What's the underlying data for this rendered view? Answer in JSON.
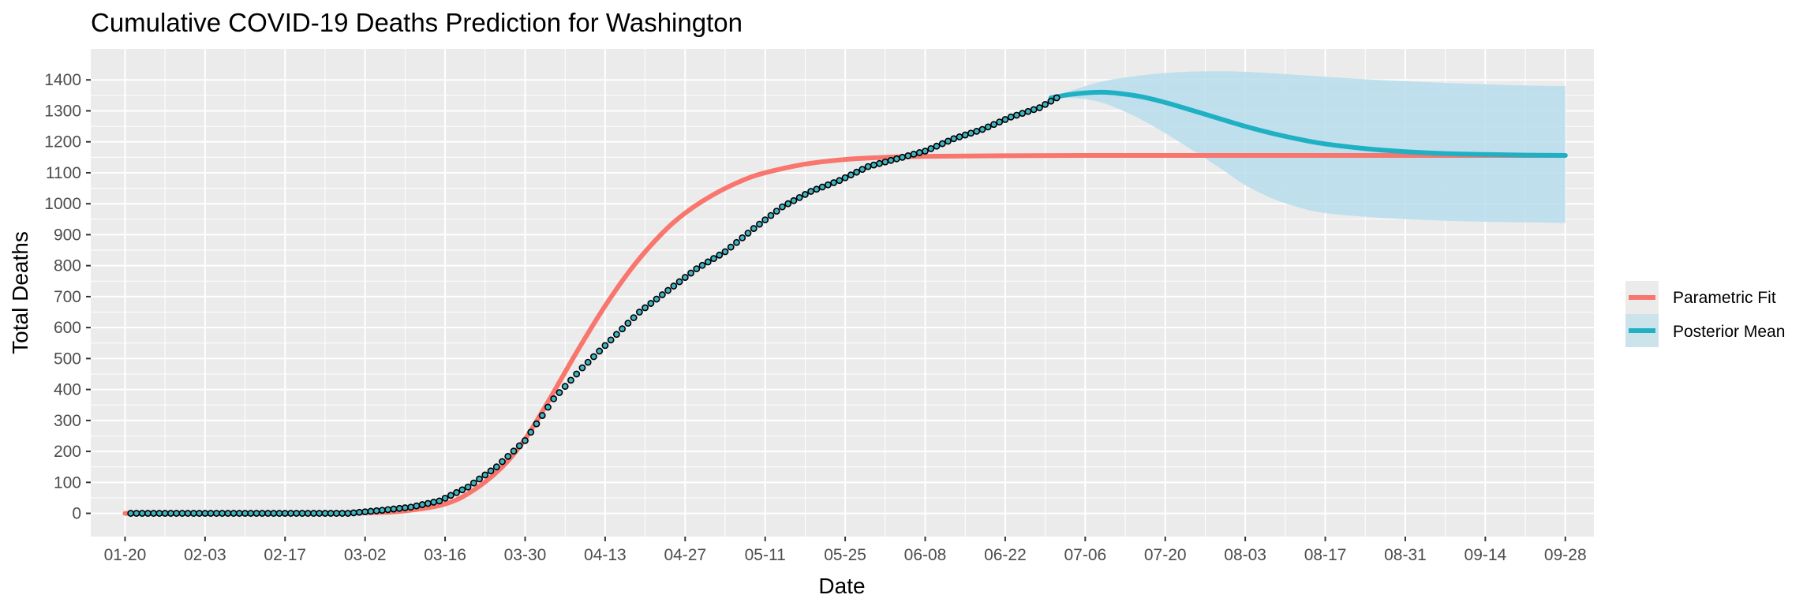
{
  "chart_data": {
    "type": "line",
    "title": "Cumulative COVID-19 Deaths Prediction for Washington",
    "xlabel": "Date",
    "ylabel": "Total Deaths",
    "x_axis": {
      "type": "date",
      "range": [
        "2020-01-14",
        "2020-10-03"
      ],
      "ticks": [
        {
          "date": "2020-01-20",
          "label": "01-20"
        },
        {
          "date": "2020-02-03",
          "label": "02-03"
        },
        {
          "date": "2020-02-17",
          "label": "02-17"
        },
        {
          "date": "2020-03-02",
          "label": "03-02"
        },
        {
          "date": "2020-03-16",
          "label": "03-16"
        },
        {
          "date": "2020-03-30",
          "label": "03-30"
        },
        {
          "date": "2020-04-13",
          "label": "04-13"
        },
        {
          "date": "2020-04-27",
          "label": "04-27"
        },
        {
          "date": "2020-05-11",
          "label": "05-11"
        },
        {
          "date": "2020-05-25",
          "label": "05-25"
        },
        {
          "date": "2020-06-08",
          "label": "06-08"
        },
        {
          "date": "2020-06-22",
          "label": "06-22"
        },
        {
          "date": "2020-07-06",
          "label": "07-06"
        },
        {
          "date": "2020-07-20",
          "label": "07-20"
        },
        {
          "date": "2020-08-03",
          "label": "08-03"
        },
        {
          "date": "2020-08-17",
          "label": "08-17"
        },
        {
          "date": "2020-08-31",
          "label": "08-31"
        },
        {
          "date": "2020-09-14",
          "label": "09-14"
        },
        {
          "date": "2020-09-28",
          "label": "09-28"
        }
      ]
    },
    "y_axis": {
      "range": [
        -75,
        1500
      ],
      "ticks": [
        0,
        100,
        200,
        300,
        400,
        500,
        600,
        700,
        800,
        900,
        1000,
        1100,
        1200,
        1300,
        1400
      ]
    },
    "grid": true,
    "legend": {
      "position": "right",
      "entries": [
        {
          "name": "Parametric Fit",
          "color": "#F8766D"
        },
        {
          "name": "Posterior Mean",
          "color": "#00BFC4"
        }
      ]
    },
    "colors": {
      "panel_background": "#EBEBEB",
      "grid": "#FFFFFF",
      "parametric_fit": "#F8766D",
      "posterior_mean": "#1FB0C4",
      "credible_band": "#B7DDEC",
      "observed_point_fill": "#3FB4C2",
      "observed_point_stroke": "#000000"
    },
    "series": [
      {
        "name": "Parametric Fit",
        "x": [
          "2020-01-20",
          "2020-02-17",
          "2020-03-02",
          "2020-03-09",
          "2020-03-16",
          "2020-03-21",
          "2020-03-26",
          "2020-03-30",
          "2020-04-03",
          "2020-04-08",
          "2020-04-13",
          "2020-04-18",
          "2020-04-23",
          "2020-04-27",
          "2020-05-02",
          "2020-05-07",
          "2020-05-11",
          "2020-05-18",
          "2020-05-25",
          "2020-06-01",
          "2020-06-08",
          "2020-06-22",
          "2020-07-06",
          "2020-07-20",
          "2020-08-03",
          "2020-08-17",
          "2020-08-31",
          "2020-09-14",
          "2020-09-28"
        ],
        "y": [
          0,
          0,
          2,
          8,
          30,
          75,
          150,
          240,
          360,
          520,
          670,
          800,
          905,
          970,
          1030,
          1075,
          1100,
          1128,
          1143,
          1150,
          1153,
          1155,
          1156,
          1156,
          1156,
          1156,
          1156,
          1156,
          1156
        ]
      },
      {
        "name": "Posterior Mean",
        "x": [
          "2020-06-30",
          "2020-07-03",
          "2020-07-06",
          "2020-07-09",
          "2020-07-12",
          "2020-07-16",
          "2020-07-20",
          "2020-07-25",
          "2020-07-30",
          "2020-08-03",
          "2020-08-08",
          "2020-08-13",
          "2020-08-17",
          "2020-08-24",
          "2020-08-31",
          "2020-09-07",
          "2020-09-14",
          "2020-09-21",
          "2020-09-28"
        ],
        "y": [
          1342,
          1352,
          1358,
          1360,
          1356,
          1345,
          1327,
          1300,
          1272,
          1250,
          1226,
          1206,
          1193,
          1178,
          1168,
          1162,
          1159,
          1157,
          1156
        ]
      },
      {
        "name": "Credible Band",
        "x": [
          "2020-06-30",
          "2020-07-03",
          "2020-07-06",
          "2020-07-09",
          "2020-07-12",
          "2020-07-16",
          "2020-07-20",
          "2020-07-25",
          "2020-07-30",
          "2020-08-03",
          "2020-08-08",
          "2020-08-13",
          "2020-08-17",
          "2020-08-24",
          "2020-08-31",
          "2020-09-07",
          "2020-09-14",
          "2020-09-21",
          "2020-09-28"
        ],
        "upper": [
          1342,
          1362,
          1380,
          1395,
          1405,
          1415,
          1422,
          1427,
          1428,
          1426,
          1421,
          1415,
          1410,
          1402,
          1396,
          1390,
          1386,
          1382,
          1380
        ],
        "lower": [
          1340,
          1342,
          1338,
          1326,
          1305,
          1270,
          1228,
          1170,
          1110,
          1060,
          1015,
          985,
          970,
          958,
          950,
          945,
          942,
          940,
          938
        ]
      },
      {
        "name": "Observed",
        "type": "scatter",
        "start_date": "2020-01-21",
        "end_date": "2020-07-01",
        "anchors": [
          {
            "date": "2020-01-21",
            "y": 0
          },
          {
            "date": "2020-02-28",
            "y": 0
          },
          {
            "date": "2020-03-05",
            "y": 10
          },
          {
            "date": "2020-03-10",
            "y": 20
          },
          {
            "date": "2020-03-15",
            "y": 40
          },
          {
            "date": "2020-03-20",
            "y": 85
          },
          {
            "date": "2020-03-25",
            "y": 150
          },
          {
            "date": "2020-03-30",
            "y": 235
          },
          {
            "date": "2020-04-04",
            "y": 370
          },
          {
            "date": "2020-04-09",
            "y": 470
          },
          {
            "date": "2020-04-14",
            "y": 560
          },
          {
            "date": "2020-04-19",
            "y": 650
          },
          {
            "date": "2020-04-24",
            "y": 720
          },
          {
            "date": "2020-04-29",
            "y": 790
          },
          {
            "date": "2020-05-04",
            "y": 845
          },
          {
            "date": "2020-05-09",
            "y": 920
          },
          {
            "date": "2020-05-14",
            "y": 990
          },
          {
            "date": "2020-05-19",
            "y": 1040
          },
          {
            "date": "2020-05-24",
            "y": 1075
          },
          {
            "date": "2020-05-29",
            "y": 1120
          },
          {
            "date": "2020-06-03",
            "y": 1145
          },
          {
            "date": "2020-06-08",
            "y": 1170
          },
          {
            "date": "2020-06-13",
            "y": 1210
          },
          {
            "date": "2020-06-18",
            "y": 1240
          },
          {
            "date": "2020-06-23",
            "y": 1280
          },
          {
            "date": "2020-06-28",
            "y": 1310
          },
          {
            "date": "2020-07-01",
            "y": 1342
          }
        ]
      }
    ]
  }
}
